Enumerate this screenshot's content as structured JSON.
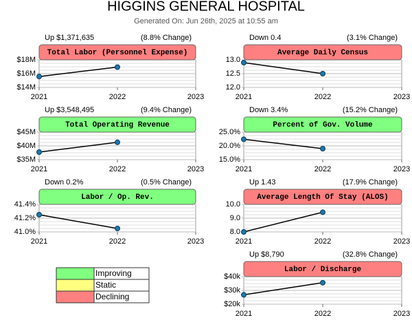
{
  "header": {
    "title": "HIGGINS GENERAL HOSPITAL",
    "subtitle": "Generated On: Jun 26th, 2025 at 10:55 am"
  },
  "legend": {
    "items": [
      {
        "label": "Improving",
        "color": "#80ff80"
      },
      {
        "label": "Static",
        "color": "#ffff80"
      },
      {
        "label": "Declining",
        "color": "#ff8080"
      }
    ]
  },
  "chart_data": [
    {
      "type": "line",
      "title": "Total Labor (Personnel Expense)",
      "change": "Up $1,371,635",
      "change_percent": "(8.8% Change)",
      "header_color": "#ff8080",
      "x": [
        2021,
        2022
      ],
      "values": [
        15.58,
        16.95
      ],
      "xlim": [
        2021,
        2023
      ],
      "xticks": [
        2021,
        2022,
        2023
      ],
      "ylim": [
        14,
        18
      ],
      "yticks": [
        {
          "value": 14,
          "label": "$14M"
        },
        {
          "value": 16,
          "label": "$16M"
        },
        {
          "value": 18,
          "label": "$18M"
        }
      ]
    },
    {
      "type": "line",
      "title": "Average Daily Census",
      "change": "Down 0.4",
      "change_percent": "(3.1% Change)",
      "header_color": "#ff8080",
      "x": [
        2021,
        2022
      ],
      "values": [
        12.9,
        12.5
      ],
      "xlim": [
        2021,
        2023
      ],
      "xticks": [
        2021,
        2022,
        2023
      ],
      "ylim": [
        12,
        13
      ],
      "yticks": [
        {
          "value": 12,
          "label": "12.0"
        },
        12.5,
        {
          "value": 13,
          "label": "13.0"
        }
      ]
    },
    {
      "type": "line",
      "title": "Total Operating Revenue",
      "change": "Up $3,548,495",
      "change_percent": "(9.4% Change)",
      "header_color": "#80ff80",
      "x": [
        2021,
        2022
      ],
      "values": [
        37.75,
        41.3
      ],
      "xlim": [
        2021,
        2023
      ],
      "xticks": [
        2021,
        2022,
        2023
      ],
      "ylim": [
        35,
        45
      ],
      "yticks": [
        {
          "value": 35,
          "label": "$35M"
        },
        {
          "value": 40,
          "label": "$40M"
        },
        {
          "value": 45,
          "label": "$45M"
        }
      ]
    },
    {
      "type": "line",
      "title": "Percent of Gov. Volume",
      "change": "Down 3.4%",
      "change_percent": "(15.2% Change)",
      "header_color": "#80ff80",
      "x": [
        2021,
        2022
      ],
      "values": [
        22.4,
        19.0
      ],
      "xlim": [
        2021,
        2023
      ],
      "xticks": [
        2021,
        2022,
        2023
      ],
      "ylim": [
        15,
        25
      ],
      "yticks": [
        {
          "value": 15,
          "label": "15.0%"
        },
        {
          "value": 20,
          "label": "20.0%"
        },
        {
          "value": 25,
          "label": "25.0%"
        }
      ]
    },
    {
      "type": "line",
      "title": "Labor / Op. Rev.",
      "change": "Down 0.2%",
      "change_percent": "(0.5% Change)",
      "header_color": "#80ff80",
      "x": [
        2021,
        2022
      ],
      "values": [
        41.25,
        41.05
      ],
      "xlim": [
        2021,
        2023
      ],
      "xticks": [
        2021,
        2022,
        2023
      ],
      "ylim": [
        41.0,
        41.4
      ],
      "yticks": [
        {
          "value": 41.0,
          "label": "41.0%"
        },
        {
          "value": 41.2,
          "label": "41.2%"
        },
        {
          "value": 41.4,
          "label": "41.4%"
        }
      ]
    },
    {
      "type": "line",
      "title": "Average Length Of Stay (ALOS)",
      "change": "Up 1.43",
      "change_percent": "(17.9% Change)",
      "header_color": "#ff8080",
      "x": [
        2021,
        2022
      ],
      "values": [
        8.0,
        9.43
      ],
      "xlim": [
        2021,
        2023
      ],
      "xticks": [
        2021,
        2022,
        2023
      ],
      "ylim": [
        8,
        10
      ],
      "yticks": [
        {
          "value": 8,
          "label": "8.0"
        },
        {
          "value": 9,
          "label": "9.0"
        },
        {
          "value": 10,
          "label": "10.0"
        }
      ]
    },
    {
      "type": "line",
      "title": "Labor / Discharge",
      "change": "Up $8,790",
      "change_percent": "(32.8% Change)",
      "header_color": "#ff8080",
      "x": [
        2021,
        2022
      ],
      "values": [
        26.8,
        35.59
      ],
      "xlim": [
        2021,
        2023
      ],
      "xticks": [
        2021,
        2022,
        2023
      ],
      "ylim": [
        20,
        40
      ],
      "yticks": [
        {
          "value": 20,
          "label": "$20k"
        },
        {
          "value": 30,
          "label": "$30k"
        },
        {
          "value": 40,
          "label": "$40k"
        }
      ]
    }
  ]
}
